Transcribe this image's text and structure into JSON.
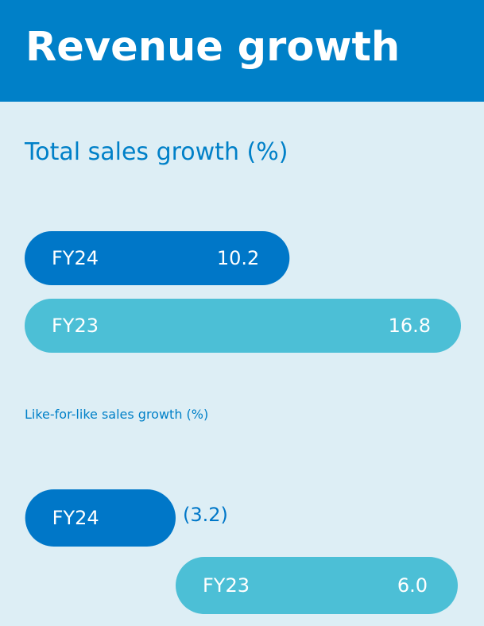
{
  "header": {
    "title": "Revenue growth"
  },
  "colors": {
    "header_bg": "#0080c8",
    "page_bg": "#ddeef5",
    "fy24_bar": "#0077c8",
    "fy23_bar": "#4cbfd6",
    "title_text": "#0080c8",
    "bar_text": "#ffffff",
    "outside_value_text": "#0077c8"
  },
  "chart_data": [
    {
      "type": "bar",
      "orientation": "horizontal",
      "title": "Total sales growth (%)",
      "categories": [
        "FY24",
        "FY23"
      ],
      "values": [
        10.2,
        16.8
      ],
      "value_labels": [
        "10.2",
        "16.8"
      ],
      "xlim": [
        0,
        16.8
      ],
      "grid": false,
      "legend": "none"
    },
    {
      "type": "bar",
      "orientation": "horizontal",
      "title": "Like-for-like sales growth (%)",
      "categories": [
        "FY24",
        "FY23"
      ],
      "values": [
        -3.2,
        6.0
      ],
      "value_labels": [
        "(3.2)",
        "6.0"
      ],
      "xlim": [
        -3.2,
        6.0
      ],
      "grid": false,
      "legend": "none"
    }
  ]
}
